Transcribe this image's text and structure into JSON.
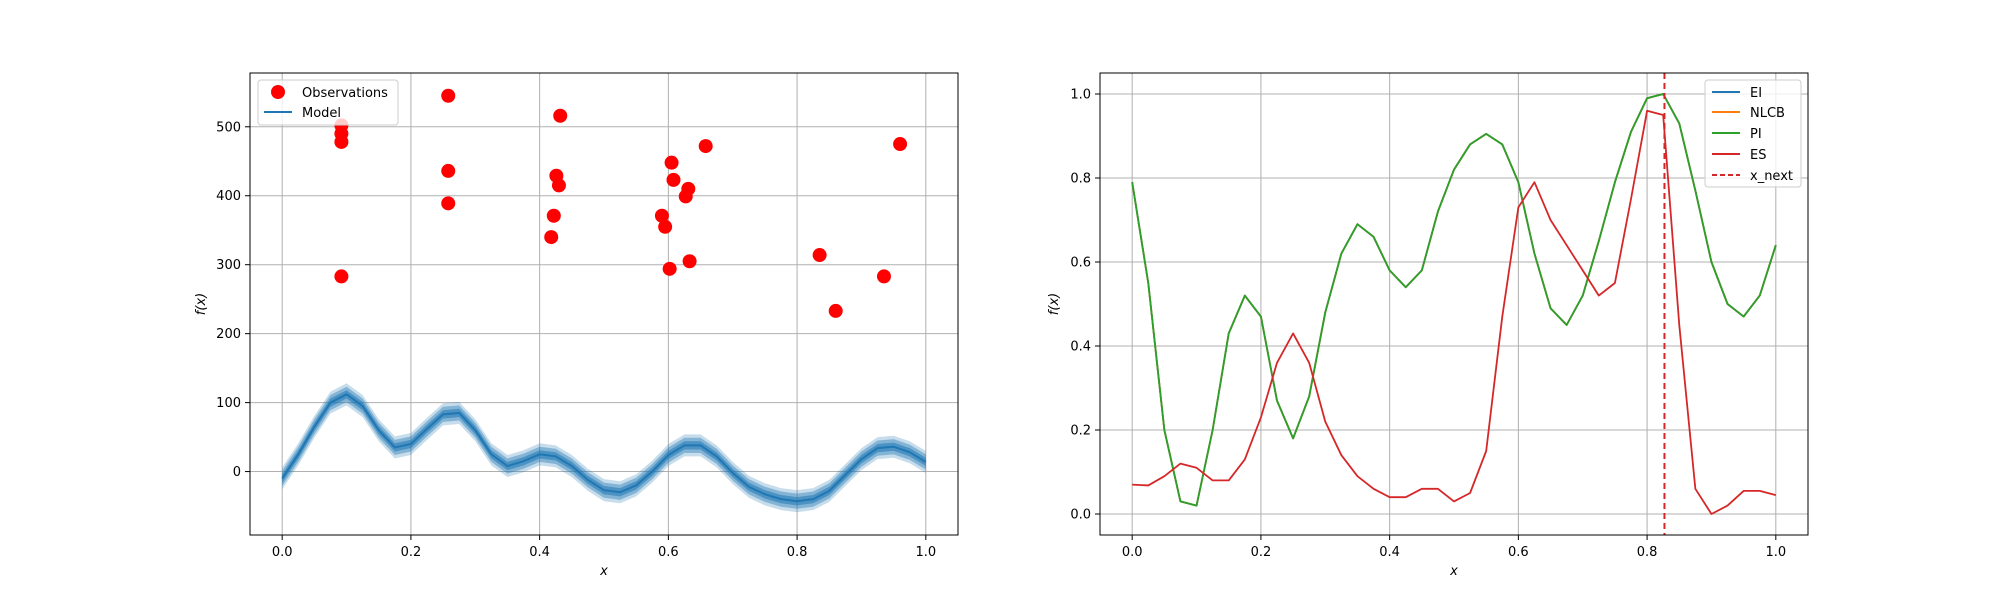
{
  "chart_data": [
    {
      "type": "scatter",
      "xlabel": "x",
      "ylabel": "f(x)",
      "xlim": [
        -0.05,
        1.05
      ],
      "ylim": [
        -92,
        578
      ],
      "xticks": [
        "0.0",
        "0.2",
        "0.4",
        "0.6",
        "0.8",
        "1.0"
      ],
      "yticks": [
        "0",
        "100",
        "200",
        "300",
        "400",
        "500"
      ],
      "grid": true,
      "legend_position": "upper-left",
      "series": [
        {
          "name": "Observations",
          "kind": "scatter",
          "color": "#ff0000",
          "points": [
            [
              0.092,
              502
            ],
            [
              0.092,
              490
            ],
            [
              0.092,
              478
            ],
            [
              0.092,
              283
            ],
            [
              0.258,
              545
            ],
            [
              0.258,
              436
            ],
            [
              0.258,
              389
            ],
            [
              0.418,
              340
            ],
            [
              0.422,
              371
            ],
            [
              0.426,
              429
            ],
            [
              0.43,
              415
            ],
            [
              0.432,
              516
            ],
            [
              0.59,
              371
            ],
            [
              0.595,
              355
            ],
            [
              0.602,
              294
            ],
            [
              0.605,
              448
            ],
            [
              0.608,
              423
            ],
            [
              0.627,
              399
            ],
            [
              0.631,
              410
            ],
            [
              0.633,
              305
            ],
            [
              0.658,
              472
            ],
            [
              0.835,
              314
            ],
            [
              0.86,
              233
            ],
            [
              0.935,
              283
            ],
            [
              0.96,
              475
            ]
          ]
        },
        {
          "name": "Model",
          "kind": "line",
          "color": "#1f77b4",
          "x": [
            0.0,
            0.025,
            0.05,
            0.075,
            0.1,
            0.125,
            0.15,
            0.175,
            0.2,
            0.225,
            0.25,
            0.275,
            0.3,
            0.325,
            0.35,
            0.375,
            0.4,
            0.425,
            0.45,
            0.475,
            0.5,
            0.525,
            0.55,
            0.575,
            0.6,
            0.625,
            0.65,
            0.675,
            0.7,
            0.725,
            0.75,
            0.775,
            0.8,
            0.825,
            0.85,
            0.875,
            0.9,
            0.925,
            0.95,
            0.975,
            1.0
          ],
          "y": [
            -10,
            25,
            65,
            100,
            112,
            95,
            60,
            35,
            40,
            62,
            83,
            85,
            60,
            25,
            8,
            15,
            25,
            22,
            8,
            -12,
            -27,
            -30,
            -20,
            0,
            24,
            38,
            38,
            22,
            -2,
            -22,
            -33,
            -40,
            -43,
            -40,
            -28,
            -5,
            18,
            34,
            36,
            28,
            14
          ],
          "band_halfwidths": [
            6,
            11,
            16
          ]
        }
      ]
    },
    {
      "type": "line",
      "xlabel": "x",
      "ylabel": "f(x)",
      "xlim": [
        -0.05,
        1.05
      ],
      "ylim": [
        -0.05,
        1.05
      ],
      "xticks": [
        "0.0",
        "0.2",
        "0.4",
        "0.6",
        "0.8",
        "1.0"
      ],
      "yticks": [
        "0.0",
        "0.2",
        "0.4",
        "0.6",
        "0.8",
        "1.0"
      ],
      "grid": true,
      "legend_position": "upper-right",
      "x": [
        0.0,
        0.025,
        0.05,
        0.075,
        0.1,
        0.125,
        0.15,
        0.175,
        0.2,
        0.225,
        0.25,
        0.275,
        0.3,
        0.325,
        0.35,
        0.375,
        0.4,
        0.425,
        0.45,
        0.475,
        0.5,
        0.525,
        0.55,
        0.575,
        0.6,
        0.625,
        0.65,
        0.675,
        0.7,
        0.725,
        0.75,
        0.775,
        0.8,
        0.825,
        0.85,
        0.875,
        0.9,
        0.925,
        0.95,
        0.975,
        1.0
      ],
      "series": [
        {
          "name": "EI",
          "color": "#1f77b4",
          "values": [
            0.79,
            0.55,
            0.2,
            0.03,
            0.02,
            0.2,
            0.43,
            0.52,
            0.47,
            0.27,
            0.18,
            0.28,
            0.48,
            0.62,
            0.69,
            0.66,
            0.58,
            0.54,
            0.58,
            0.72,
            0.82,
            0.88,
            0.905,
            0.88,
            0.79,
            0.62,
            0.49,
            0.45,
            0.52,
            0.65,
            0.79,
            0.91,
            0.99,
            1.0,
            0.93,
            0.77,
            0.6,
            0.5,
            0.47,
            0.52,
            0.64
          ]
        },
        {
          "name": "NLCB",
          "color": "#ff7f0e",
          "values": [
            0.79,
            0.55,
            0.2,
            0.03,
            0.02,
            0.2,
            0.43,
            0.52,
            0.47,
            0.27,
            0.18,
            0.28,
            0.48,
            0.62,
            0.69,
            0.66,
            0.58,
            0.54,
            0.58,
            0.72,
            0.82,
            0.88,
            0.905,
            0.88,
            0.79,
            0.62,
            0.49,
            0.45,
            0.52,
            0.65,
            0.79,
            0.91,
            0.99,
            1.0,
            0.93,
            0.77,
            0.6,
            0.5,
            0.47,
            0.52,
            0.64
          ]
        },
        {
          "name": "PI",
          "color": "#2ca02c",
          "values": [
            0.79,
            0.55,
            0.2,
            0.03,
            0.02,
            0.2,
            0.43,
            0.52,
            0.47,
            0.27,
            0.18,
            0.28,
            0.48,
            0.62,
            0.69,
            0.66,
            0.58,
            0.54,
            0.58,
            0.72,
            0.82,
            0.88,
            0.905,
            0.88,
            0.79,
            0.62,
            0.49,
            0.45,
            0.52,
            0.65,
            0.79,
            0.91,
            0.99,
            1.0,
            0.93,
            0.77,
            0.6,
            0.5,
            0.47,
            0.52,
            0.64
          ]
        },
        {
          "name": "ES",
          "color": "#d62728",
          "values": [
            0.07,
            0.068,
            0.09,
            0.12,
            0.11,
            0.08,
            0.08,
            0.13,
            0.23,
            0.36,
            0.43,
            0.36,
            0.22,
            0.14,
            0.09,
            0.06,
            0.04,
            0.04,
            0.06,
            0.06,
            0.03,
            0.05,
            0.15,
            0.47,
            0.73,
            0.79,
            0.7,
            0.64,
            0.58,
            0.52,
            0.55,
            0.75,
            0.96,
            0.95,
            0.45,
            0.06,
            0.0,
            0.02,
            0.055,
            0.055,
            0.045
          ]
        }
      ],
      "vline": {
        "name": "x_next",
        "x": 0.827,
        "color": "#d62728",
        "style": "dashed"
      }
    }
  ]
}
